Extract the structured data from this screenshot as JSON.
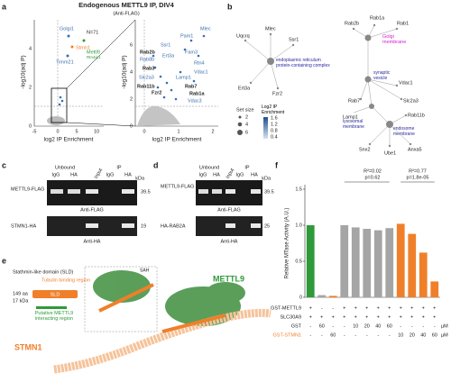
{
  "panel_labels": [
    "a",
    "b",
    "c",
    "d",
    "e",
    "f"
  ],
  "a": {
    "title": "Endogenous METTL9 IP, DIV4",
    "subtitle": "(Anti-FLAG)",
    "n": "N=71",
    "xlabel": "log2 IP Enrichment",
    "ylabel": "-log10(adj P)",
    "left_xticks": [
      "-5",
      "0",
      "5",
      "10"
    ],
    "left_yticks": [
      "0",
      "2",
      "4"
    ],
    "right_xticks": [
      "0",
      "1",
      "2"
    ],
    "right_yticks": [
      "0",
      "2",
      "4",
      "6"
    ],
    "left_labels": [
      "Golgi1",
      "Stmn1",
      "Mettl9",
      "Timm21",
      "Rtn4ip1"
    ],
    "right_labels": [
      "Rab2b",
      "Rab8b",
      "Rab3",
      "Rab11b",
      "Rab7",
      "Rab1a",
      "Fzr2",
      "Slc2a3",
      "Lamp1",
      "Vdac1",
      "Ssr1",
      "Pam1",
      "Fam3",
      "Rtn4",
      "Vdac3",
      "Mlec",
      "Ert3a"
    ]
  },
  "b": {
    "nodes": [
      "Uqcrq",
      "Mlec",
      "Ssr1",
      "Ert3a",
      "Fzr2",
      "Rab2b",
      "Rab1",
      "Rab1a",
      "Rab7",
      "Vdac1",
      "Slc2a3",
      "Lamp1",
      "Rab11b",
      "Snx2",
      "Ube1",
      "Anxa5"
    ],
    "terms": [
      "endoplasmic reticulum protein-containing complex",
      "Golgi membrane",
      "synaptic vesicle",
      "lysosomal membrane",
      "endosome membrane"
    ],
    "legend_size_title": "Set size",
    "legend_sizes": [
      "2",
      "4",
      "6"
    ],
    "legend_color_title": "Log2 IP Enrichment",
    "legend_colors": [
      "1.6",
      "1.2",
      "0.8",
      "0.4"
    ]
  },
  "c": {
    "header": [
      "Unbound",
      "IP",
      "Input",
      "IgG",
      "HA",
      "IgG",
      "HA"
    ],
    "rows": [
      "METTL9-FLAG",
      "STMN1-HA"
    ],
    "kda": "kDa",
    "sizes": [
      "39.5",
      "19"
    ],
    "antibodies": [
      "Anti-FLAG",
      "Anti-HA"
    ]
  },
  "d": {
    "header": [
      "Unbound",
      "IP",
      "Input",
      "IgG",
      "HA",
      "IgG",
      "HA"
    ],
    "rows": [
      "METTL9-FLAG",
      "HA-RAB2A"
    ],
    "kda": "kDa",
    "sizes": [
      "39.5",
      "25"
    ],
    "antibodies": [
      "Anti-FLAG",
      "Anti-HA"
    ]
  },
  "e": {
    "domain": "Stathmin-like domain (SLD)",
    "tubulin": "Tubulin binding region",
    "length": "149 aa",
    "mass": "17 kDa",
    "sld": "SLD",
    "region": "Putative METTL9 interacting region",
    "mettl9": "METTL9",
    "stmn1": "STMN1",
    "sah": "SAH"
  },
  "chart_data": {
    "type": "bar",
    "ylabel": "Relative MTase Activity (A.U.)",
    "ylim": [
      0,
      1.5
    ],
    "yticks": [
      0,
      0.5,
      {
        "value": 1,
        "label": "1.0"
      },
      1.5
    ],
    "values": [
      1.0,
      0.03,
      0.02,
      1.0,
      0.97,
      0.95,
      0.93,
      0.96,
      1.02,
      0.88,
      0.62,
      0.22
    ],
    "colors": [
      "#2e9a3a",
      "#a5a5a5",
      "#f07f2a",
      "#a5a5a5",
      "#a5a5a5",
      "#a5a5a5",
      "#a5a5a5",
      "#a5a5a5",
      "#f07f2a",
      "#f07f2a",
      "#f07f2a",
      "#f07f2a"
    ],
    "annotations": [
      "R²=0.02",
      "p=0.62",
      "R²=0.77",
      "p=1.8e-05"
    ],
    "row_labels": [
      "GST-METTL9",
      "SLC30A9",
      "GST",
      "GST-STMN1"
    ],
    "rows": [
      [
        "+",
        "-",
        "-",
        "+",
        "+",
        "+",
        "+",
        "+",
        "+",
        "+",
        "+",
        "+"
      ],
      [
        "+",
        "+",
        "+",
        "+",
        "+",
        "+",
        "+",
        "+",
        "+",
        "+",
        "+",
        "+"
      ],
      [
        "-",
        "60",
        "-",
        "-",
        "10",
        "20",
        "40",
        "60",
        "-",
        "-",
        "-",
        "-"
      ],
      [
        "-",
        "-",
        "60",
        "-",
        "-",
        "-",
        "-",
        "-",
        "10",
        "20",
        "40",
        "60"
      ]
    ],
    "unit": "µM"
  }
}
